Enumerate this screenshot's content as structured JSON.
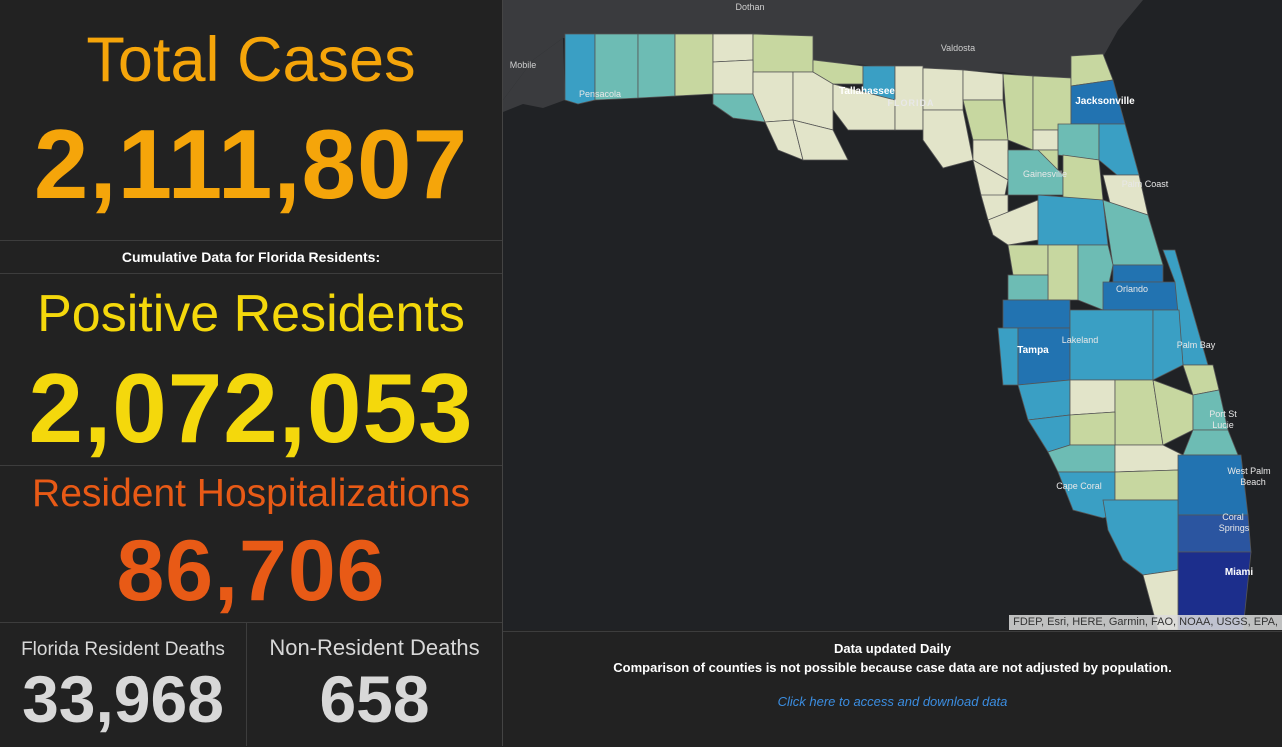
{
  "total_cases": {
    "label": "Total Cases",
    "value": "2,111,807"
  },
  "cumulative_heading": "Cumulative Data for Florida Residents:",
  "positive_residents": {
    "label": "Positive Residents",
    "value": "2,072,053"
  },
  "hospitalizations": {
    "label": "Resident Hospitalizations",
    "value": "86,706"
  },
  "resident_deaths": {
    "label": "Florida Resident Deaths",
    "value": "33,968"
  },
  "nonresident_deaths": {
    "label": "Non-Resident Deaths",
    "value": "658"
  },
  "map": {
    "attribution": "FDEP, Esri, HERE, Garmin, FAO, NOAA, USGS, EPA,",
    "place_labels": [
      "Dothan",
      "Valdosta",
      "Mobile",
      "Pensacola",
      "Tallahassee",
      "FLORIDA",
      "Jacksonville",
      "Gainesville",
      "Palm Coast",
      "Orlando",
      "Lakeland",
      "Tampa",
      "Palm Bay",
      "Port St",
      "Lucie",
      "West Palm",
      "Beach",
      "Cape Coral",
      "Coral",
      "Springs",
      "Miami"
    ],
    "colors": {
      "very_low": "#e2e4c9",
      "low": "#c7d7a0",
      "medium": "#6dbcb4",
      "high": "#3a9fc4",
      "very_high": "#2273b1",
      "highest": "#1c2e8c",
      "land_outside": "#3a3b3e",
      "water": "#202225"
    }
  },
  "footer": {
    "line1": "Data updated Daily",
    "line2": "Comparison of counties is not possible because case data are not adjusted by population.",
    "link": "Click here to access and download data"
  }
}
